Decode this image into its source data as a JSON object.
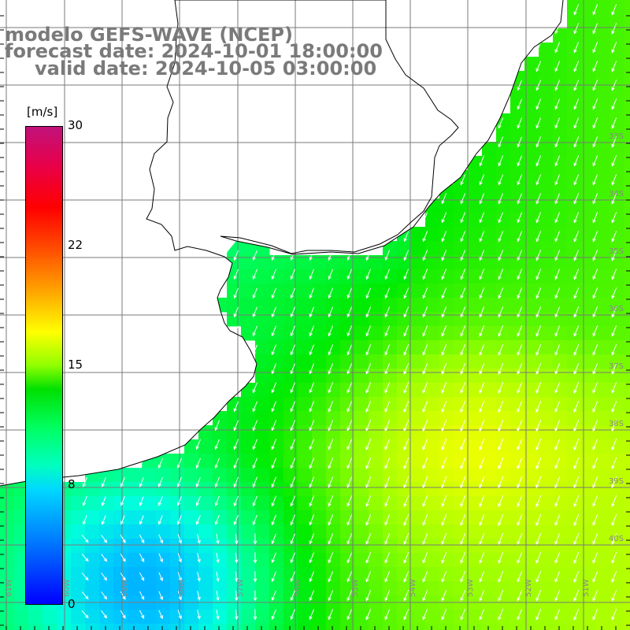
{
  "header": {
    "model": "modelo GEFS-WAVE (NCEP)",
    "forecast": "forecast date: 2024-10-01 18:00:00",
    "valid": "valid date: 2024-10-05 03:00:00"
  },
  "colorbar": {
    "unit": "[m/s]",
    "ticks": [
      "30",
      "22",
      "15",
      "8",
      "0"
    ],
    "colors": [
      "#0000ff",
      "#00d8ff",
      "#00e000",
      "#ffff00",
      "#ff0000",
      "#c0127a"
    ]
  },
  "map": {
    "land_color": "#ffffff",
    "grid_color": "#7a7a7a",
    "coast_color": "#000000",
    "arrow_color": "#ffffff",
    "right_axis_labels": [
      "33S",
      "34S",
      "35S",
      "36S",
      "37S",
      "38S",
      "39S",
      "40S"
    ],
    "bottom_axis_labels": [
      "61W",
      "60W",
      "59W",
      "58W",
      "57W",
      "56W",
      "55W",
      "54W",
      "53W",
      "52W",
      "51W"
    ],
    "approx_wind_direction": "from north-northeast",
    "approx_max_speed_ms": 14
  }
}
